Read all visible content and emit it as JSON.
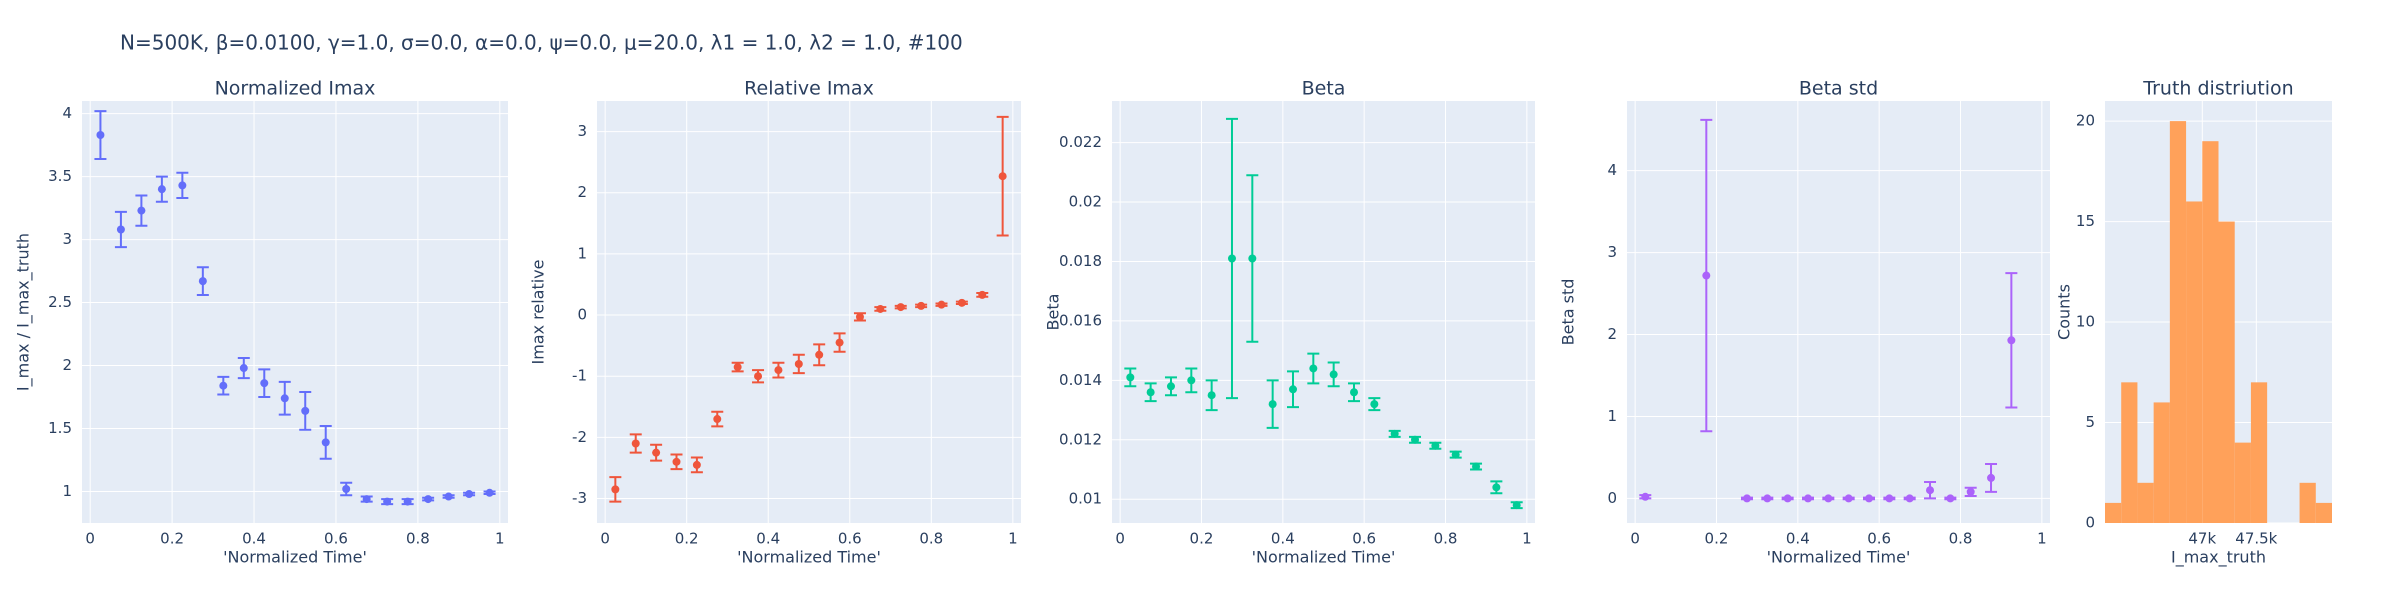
{
  "figure_title": "N=500K, β=0.0100, γ=1.0, σ=0.0,  α=0.0, ψ=0.0, μ=20.0, λ1 = 1.0, λ2 = 1.0, #100",
  "chart_data": [
    {
      "type": "scatter",
      "title": "Normalized Imax",
      "xlabel": "'Normalized Time'",
      "ylabel": "I_max / I_max_truth",
      "color": "#636efa",
      "grid": true,
      "x": [
        0.025,
        0.075,
        0.125,
        0.175,
        0.225,
        0.275,
        0.325,
        0.375,
        0.425,
        0.475,
        0.525,
        0.575,
        0.625,
        0.675,
        0.725,
        0.775,
        0.825,
        0.875,
        0.925,
        0.975
      ],
      "values": [
        3.83,
        3.08,
        3.23,
        3.4,
        3.43,
        2.67,
        1.84,
        1.98,
        1.86,
        1.74,
        1.64,
        1.39,
        1.02,
        0.94,
        0.92,
        0.92,
        0.94,
        0.96,
        0.98,
        0.99
      ],
      "errors": [
        0.19,
        0.14,
        0.12,
        0.1,
        0.1,
        0.11,
        0.07,
        0.08,
        0.11,
        0.13,
        0.15,
        0.13,
        0.05,
        0.02,
        0.02,
        0.02,
        0.01,
        0.01,
        0.01,
        0.01
      ],
      "xlim": [
        -0.02,
        1.02
      ],
      "xticks": [
        0,
        0.2,
        0.4,
        0.6,
        0.8,
        1
      ],
      "ylim": [
        0.75,
        4.1
      ],
      "yticks": [
        1,
        1.5,
        2,
        2.5,
        3,
        3.5,
        4
      ]
    },
    {
      "type": "scatter",
      "title": "Relative Imax",
      "xlabel": "'Normalized Time'",
      "ylabel": "Imax relative",
      "color": "#ef553b",
      "grid": true,
      "x": [
        0.025,
        0.075,
        0.125,
        0.175,
        0.225,
        0.275,
        0.325,
        0.375,
        0.425,
        0.475,
        0.525,
        0.575,
        0.625,
        0.675,
        0.725,
        0.775,
        0.825,
        0.875,
        0.925,
        0.975
      ],
      "values": [
        -2.85,
        -2.1,
        -2.25,
        -2.4,
        -2.45,
        -1.7,
        -0.85,
        -1.0,
        -0.9,
        -0.8,
        -0.65,
        -0.45,
        -0.03,
        0.1,
        0.13,
        0.15,
        0.17,
        0.2,
        0.33,
        2.27
      ],
      "errors": [
        0.2,
        0.15,
        0.13,
        0.12,
        0.12,
        0.12,
        0.07,
        0.1,
        0.12,
        0.15,
        0.17,
        0.15,
        0.06,
        0.03,
        0.02,
        0.02,
        0.02,
        0.02,
        0.03,
        0.97
      ],
      "xlim": [
        -0.02,
        1.02
      ],
      "xticks": [
        0,
        0.2,
        0.4,
        0.6,
        0.8,
        1
      ],
      "ylim": [
        -3.4,
        3.5
      ],
      "yticks": [
        -3,
        -2,
        -1,
        0,
        1,
        2,
        3
      ]
    },
    {
      "type": "scatter",
      "title": "Beta",
      "xlabel": "'Normalized Time'",
      "ylabel": "Beta",
      "color": "#00cc96",
      "grid": true,
      "x": [
        0.025,
        0.075,
        0.125,
        0.175,
        0.225,
        0.275,
        0.325,
        0.375,
        0.425,
        0.475,
        0.525,
        0.575,
        0.625,
        0.675,
        0.725,
        0.775,
        0.825,
        0.875,
        0.925,
        0.975
      ],
      "values": [
        0.0141,
        0.0136,
        0.0138,
        0.014,
        0.0135,
        0.0181,
        0.0181,
        0.0132,
        0.0137,
        0.0144,
        0.0142,
        0.0136,
        0.0132,
        0.0122,
        0.012,
        0.0118,
        0.0115,
        0.0111,
        0.0104,
        0.0098
      ],
      "errors": [
        0.0003,
        0.0003,
        0.0003,
        0.0004,
        0.0005,
        0.0047,
        0.0028,
        0.0008,
        0.0006,
        0.0005,
        0.0004,
        0.0003,
        0.0002,
        0.0001,
        0.0001,
        0.0001,
        0.0001,
        0.0001,
        0.0002,
        0.0001
      ],
      "xlim": [
        -0.02,
        1.02
      ],
      "xticks": [
        0,
        0.2,
        0.4,
        0.6,
        0.8,
        1
      ],
      "ylim": [
        0.0092,
        0.0234
      ],
      "yticks": [
        0.01,
        0.012,
        0.014,
        0.016,
        0.018,
        0.02,
        0.022
      ]
    },
    {
      "type": "scatter",
      "title": "Beta std",
      "xlabel": "'Normalized Time'",
      "ylabel": "Beta std",
      "color": "#ab63fa",
      "grid": true,
      "x": [
        0.025,
        0.075,
        0.125,
        0.175,
        0.225,
        0.275,
        0.325,
        0.375,
        0.425,
        0.475,
        0.525,
        0.575,
        0.625,
        0.675,
        0.725,
        0.775,
        0.825,
        0.875,
        0.925,
        0.975
      ],
      "values": [
        0.02,
        null,
        null,
        2.72,
        null,
        0,
        0,
        0,
        0,
        0,
        0,
        0,
        0,
        0,
        0.1,
        0,
        0.08,
        0.25,
        1.93,
        null
      ],
      "errors": [
        0.02,
        null,
        null,
        1.9,
        null,
        0.01,
        0.01,
        0.01,
        0.01,
        0.01,
        0.01,
        0.01,
        0.01,
        0.01,
        0.1,
        0.01,
        0.05,
        0.17,
        0.82,
        null
      ],
      "xlim": [
        -0.02,
        1.02
      ],
      "xticks": [
        0,
        0.2,
        0.4,
        0.6,
        0.8,
        1
      ],
      "ylim": [
        -0.3,
        4.85
      ],
      "yticks": [
        0,
        1,
        2,
        3,
        4
      ]
    },
    {
      "type": "histogram",
      "title": "Truth distriution",
      "xlabel": "I_max_truth",
      "ylabel": "Counts",
      "color": "#ffa15a",
      "grid": true,
      "bins": [
        46100,
        46250,
        46400,
        46550,
        46700,
        46850,
        47000,
        47150,
        47300,
        47450,
        47600,
        47750,
        47900,
        48050,
        48200
      ],
      "counts": [
        1,
        7,
        2,
        6,
        20,
        16,
        19,
        15,
        4,
        7,
        0,
        0,
        2,
        1
      ],
      "xlim": [
        46100,
        48200
      ],
      "xticks": [
        {
          "value": 47000,
          "label": "47k"
        },
        {
          "value": 47500,
          "label": "47.5k"
        }
      ],
      "ylim": [
        0,
        21
      ],
      "yticks": [
        0,
        5,
        10,
        15,
        20
      ]
    }
  ]
}
